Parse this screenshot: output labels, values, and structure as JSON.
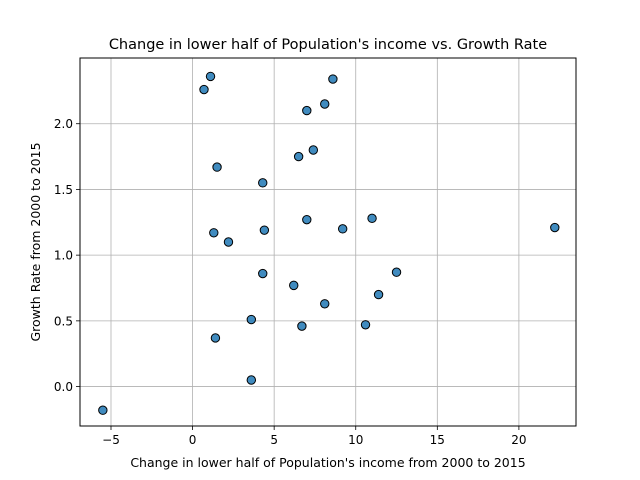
{
  "chart_data": {
    "type": "scatter",
    "title": "Change in lower half of Population's income vs. Growth Rate",
    "xlabel": "Change in lower half of Population's income from 2000 to 2015",
    "ylabel": "Growth Rate from 2000 to 2015",
    "xlim": [
      -6.9,
      23.5
    ],
    "ylim": [
      -0.3,
      2.5
    ],
    "xticks": [
      -5,
      0,
      5,
      10,
      15,
      20
    ],
    "xtick_labels": [
      "−5",
      "0",
      "5",
      "10",
      "15",
      "20"
    ],
    "yticks": [
      0.0,
      0.5,
      1.0,
      1.5,
      2.0
    ],
    "ytick_labels": [
      "0.0",
      "0.5",
      "1.0",
      "1.5",
      "2.0"
    ],
    "grid": true,
    "marker_color": "#1f77b4",
    "marker_edge_color": "#000000",
    "points": [
      {
        "x": -5.5,
        "y": -0.18
      },
      {
        "x": 0.7,
        "y": 2.26
      },
      {
        "x": 1.1,
        "y": 2.36
      },
      {
        "x": 1.3,
        "y": 1.17
      },
      {
        "x": 1.4,
        "y": 0.37
      },
      {
        "x": 1.5,
        "y": 1.67
      },
      {
        "x": 2.2,
        "y": 1.1
      },
      {
        "x": 3.6,
        "y": 0.51
      },
      {
        "x": 3.6,
        "y": 0.05
      },
      {
        "x": 4.3,
        "y": 1.55
      },
      {
        "x": 4.3,
        "y": 0.86
      },
      {
        "x": 4.4,
        "y": 1.19
      },
      {
        "x": 6.2,
        "y": 0.77
      },
      {
        "x": 6.5,
        "y": 1.75
      },
      {
        "x": 6.7,
        "y": 0.46
      },
      {
        "x": 7.0,
        "y": 2.1
      },
      {
        "x": 7.0,
        "y": 1.27
      },
      {
        "x": 7.4,
        "y": 1.8
      },
      {
        "x": 8.1,
        "y": 2.15
      },
      {
        "x": 8.1,
        "y": 0.63
      },
      {
        "x": 8.6,
        "y": 2.34
      },
      {
        "x": 9.2,
        "y": 1.2
      },
      {
        "x": 10.6,
        "y": 0.47
      },
      {
        "x": 11.0,
        "y": 1.28
      },
      {
        "x": 11.4,
        "y": 0.7
      },
      {
        "x": 12.5,
        "y": 0.87
      },
      {
        "x": 22.2,
        "y": 1.21
      }
    ]
  }
}
